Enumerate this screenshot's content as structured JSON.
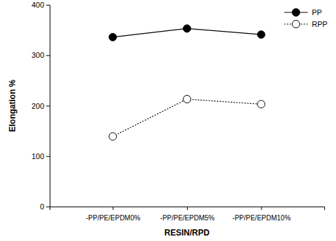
{
  "chart_data": {
    "type": "line",
    "x_label": "RESIN/RPD",
    "y_label": "Elongation %",
    "categories": [
      "-PP/PE/EPDM0%",
      "-PP/PE/EPDM5%",
      "-PP/PE/EPDM10%"
    ],
    "series": [
      {
        "name": "PP",
        "color": "#000000",
        "marker": "filled-circle",
        "line_style": "solid",
        "values": [
          336,
          353,
          341
        ]
      },
      {
        "name": "RPP",
        "color": "#000000",
        "marker": "open-circle",
        "line_style": "dotted",
        "values": [
          139,
          213,
          203
        ]
      }
    ],
    "ylim": [
      0,
      400
    ],
    "yticks": [
      0,
      100,
      200,
      300,
      400
    ],
    "legend": "top-right"
  }
}
